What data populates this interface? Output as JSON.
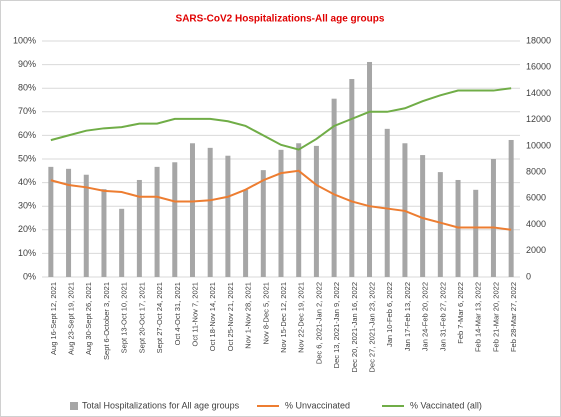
{
  "chart_data": {
    "type": "bar_line_dual",
    "title": "SARS-CoV2 Hospitalizations-All age groups",
    "categories": [
      "Aug 16-Sept 12, 2021",
      "Aug 23-Sept 19, 2021",
      "Aug 30-Sept 26, 2021",
      "Sept 6-October 3, 2021",
      "Sept 13-Oct 10, 2021",
      "Sept 20-Oct 17, 2021",
      "Sept 27-Oct 24, 2021",
      "Oct 4-Oct 31, 2021",
      "Oct 11-Nov 7, 2021",
      "Oct 18-Nov 14, 2021",
      "Oct 25-Nov 21, 2021",
      "Nov 1-Nov 28, 2021",
      "Nov 8-Dec 5, 2021",
      "Nov 15-Dec 12, 2021",
      "Nov 22-Dec 19, 2021",
      "Dec 6, 2021-Jan 2, 2022",
      "Dec 13, 2021-Jan 9, 2022",
      "Dec 20, 2021-Jan 16, 2022",
      "Dec 27, 2021-Jan 23, 2022",
      "Jan 10-Feb 6, 2022",
      "Jan 17-Feb 13, 2022",
      "Jan 24-Feb 20, 2022",
      "Jan 31-Feb 27, 2022",
      "Feb 7-Mar 6, 2022",
      "Feb 14-Mar 13, 2022",
      "Feb 21-Mar 20, 2022",
      "Feb 28-Mar 27, 2022"
    ],
    "series": [
      {
        "name": "Total Hospitalizations for All age groups",
        "kind": "bar",
        "axis": "y2",
        "color": "#a6a6a6",
        "values": [
          8400,
          8250,
          7800,
          6700,
          5200,
          7400,
          8400,
          8750,
          10200,
          9850,
          9250,
          6650,
          8150,
          9700,
          10200,
          10000,
          13600,
          15100,
          16400,
          11300,
          10200,
          9300,
          8000,
          7400,
          6650,
          9000,
          10450
        ]
      },
      {
        "name": "% Unvaccinated",
        "kind": "line",
        "axis": "y",
        "color": "#ed7d31",
        "values": [
          41,
          39,
          38,
          36.5,
          36,
          34,
          34,
          32,
          32,
          32.5,
          34,
          37,
          41,
          44,
          45,
          39,
          35,
          32,
          30,
          29,
          28,
          25,
          23,
          21,
          21,
          21,
          20
        ]
      },
      {
        "name": "% Vaccinated (all)",
        "kind": "line",
        "axis": "y",
        "color": "#70ad47",
        "values": [
          58,
          60,
          62,
          63,
          63.5,
          65,
          65,
          67,
          67,
          67,
          66,
          64,
          60,
          56,
          54,
          58.5,
          64,
          67,
          70,
          70,
          71.5,
          74.5,
          77,
          79,
          79,
          79,
          80
        ]
      }
    ],
    "ylim": [
      0,
      100
    ],
    "yticks": [
      {
        "value": 0,
        "label": "0%"
      },
      {
        "value": 10,
        "label": "10%"
      },
      {
        "value": 20,
        "label": "20%"
      },
      {
        "value": 30,
        "label": "30%"
      },
      {
        "value": 40,
        "label": "40%"
      },
      {
        "value": 50,
        "label": "50%"
      },
      {
        "value": 60,
        "label": "60%"
      },
      {
        "value": 70,
        "label": "70%"
      },
      {
        "value": 80,
        "label": "80%"
      },
      {
        "value": 90,
        "label": "90%"
      },
      {
        "value": 100,
        "label": "100%"
      }
    ],
    "y2lim": [
      0,
      18000
    ],
    "y2ticks": [
      0,
      2000,
      4000,
      6000,
      8000,
      10000,
      12000,
      14000,
      16000,
      18000
    ],
    "grid": true
  }
}
